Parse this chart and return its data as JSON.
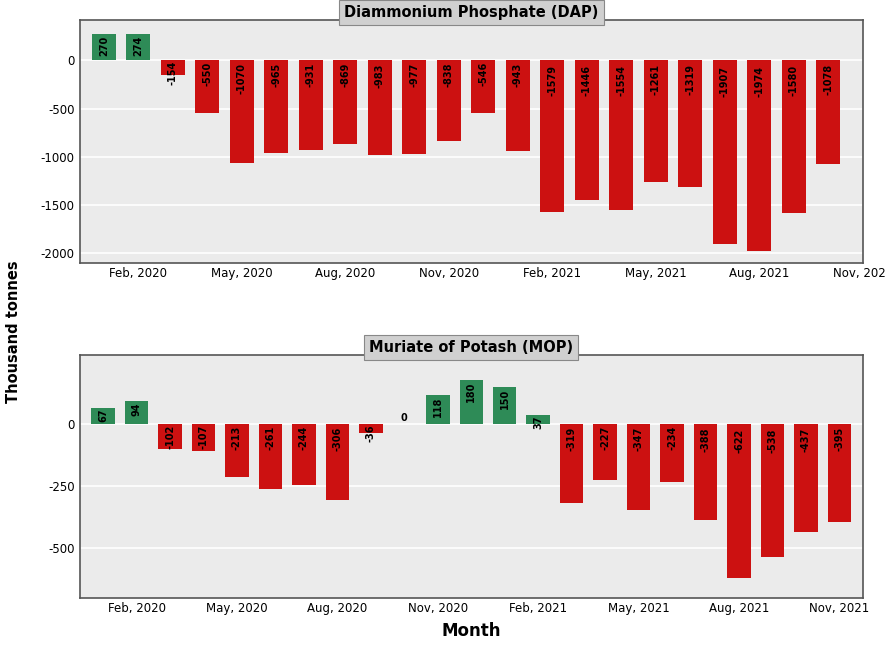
{
  "dap_values": [
    270,
    274,
    -154,
    -550,
    -1070,
    -965,
    -931,
    -869,
    -983,
    -977,
    -838,
    -546,
    -943,
    -1579,
    -1446,
    -1554,
    -1261,
    -1319,
    -1907,
    -1974,
    -1580,
    -1078
  ],
  "mop_values": [
    67,
    94,
    -102,
    -107,
    -213,
    -261,
    -244,
    -306,
    -36,
    0,
    118,
    180,
    150,
    37,
    -319,
    -227,
    -347,
    -234,
    -388,
    -622,
    -538,
    -437,
    -395
  ],
  "x_tick_labels": [
    "Feb, 2020",
    "May, 2020",
    "Aug, 2020",
    "Nov, 2020",
    "Feb, 2021",
    "May, 2021",
    "Aug, 2021",
    "Nov, 2021"
  ],
  "x_tick_positions_0idx": [
    1,
    4,
    7,
    10,
    13,
    16,
    19,
    22
  ],
  "dap_title": "Diammonium Phosphate (DAP)",
  "mop_title": "Muriate of Potash (MOP)",
  "ylabel": "Thousand tonnes",
  "xlabel": "Month",
  "dap_ylim": [
    -2100,
    420
  ],
  "mop_ylim": [
    -700,
    280
  ],
  "dap_yticks": [
    -2000,
    -1500,
    -1000,
    -500,
    0
  ],
  "mop_yticks": [
    -500,
    -250,
    0
  ],
  "color_positive": "#2e8b57",
  "color_negative": "#cc1111",
  "background_plot": "#ebebeb",
  "background_title": "#d0d0d0",
  "grid_color": "#ffffff",
  "bar_width": 0.7,
  "label_fontsize": 7.0,
  "outer_border_color": "#888888"
}
